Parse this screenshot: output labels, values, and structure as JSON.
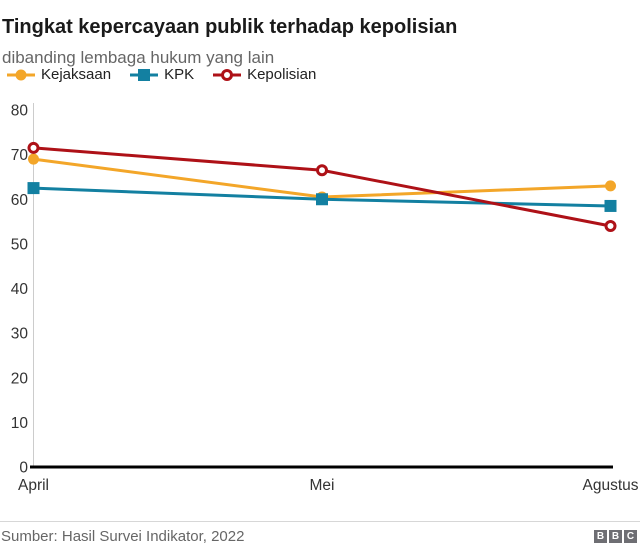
{
  "header": {
    "title": "Tingkat kepercayaan publik terhadap kepolisian",
    "subtitle": "dibanding lembaga hukum yang lain"
  },
  "footer": {
    "source": "Sumber: Hasil Survei Indikator, 2022",
    "logo_letters": [
      "B",
      "B",
      "C"
    ]
  },
  "colors": {
    "kejaksaan": "#f3a629",
    "kpk": "#1380a1",
    "kepolisian": "#ae1117",
    "axis_line": "#000000",
    "grid_line": "#cccccc",
    "tick_text": "#333333",
    "muted_text": "#666666",
    "logo_gray": "#6e6e73"
  },
  "chart_data": {
    "type": "line",
    "title": "Tingkat kepercayaan publik terhadap kepolisian",
    "subtitle": "dibanding lembaga hukum yang lain",
    "categories": [
      "April",
      "Mei",
      "Agustus"
    ],
    "series": [
      {
        "name": "Kejaksaan",
        "values": [
          69,
          60.5,
          63
        ],
        "color": "#f3a629",
        "marker": "circle"
      },
      {
        "name": "KPK",
        "values": [
          62.5,
          60,
          58.5
        ],
        "color": "#1380a1",
        "marker": "square"
      },
      {
        "name": "Kepolisian",
        "values": [
          71.5,
          66.5,
          54
        ],
        "color": "#ae1117",
        "marker": "open-circle"
      }
    ],
    "xlabel": "",
    "ylabel": "",
    "ylim": [
      0,
      80
    ],
    "yticks": [
      0,
      10,
      20,
      30,
      40,
      50,
      60,
      70,
      80
    ],
    "grid": false,
    "legend_position": "top"
  }
}
